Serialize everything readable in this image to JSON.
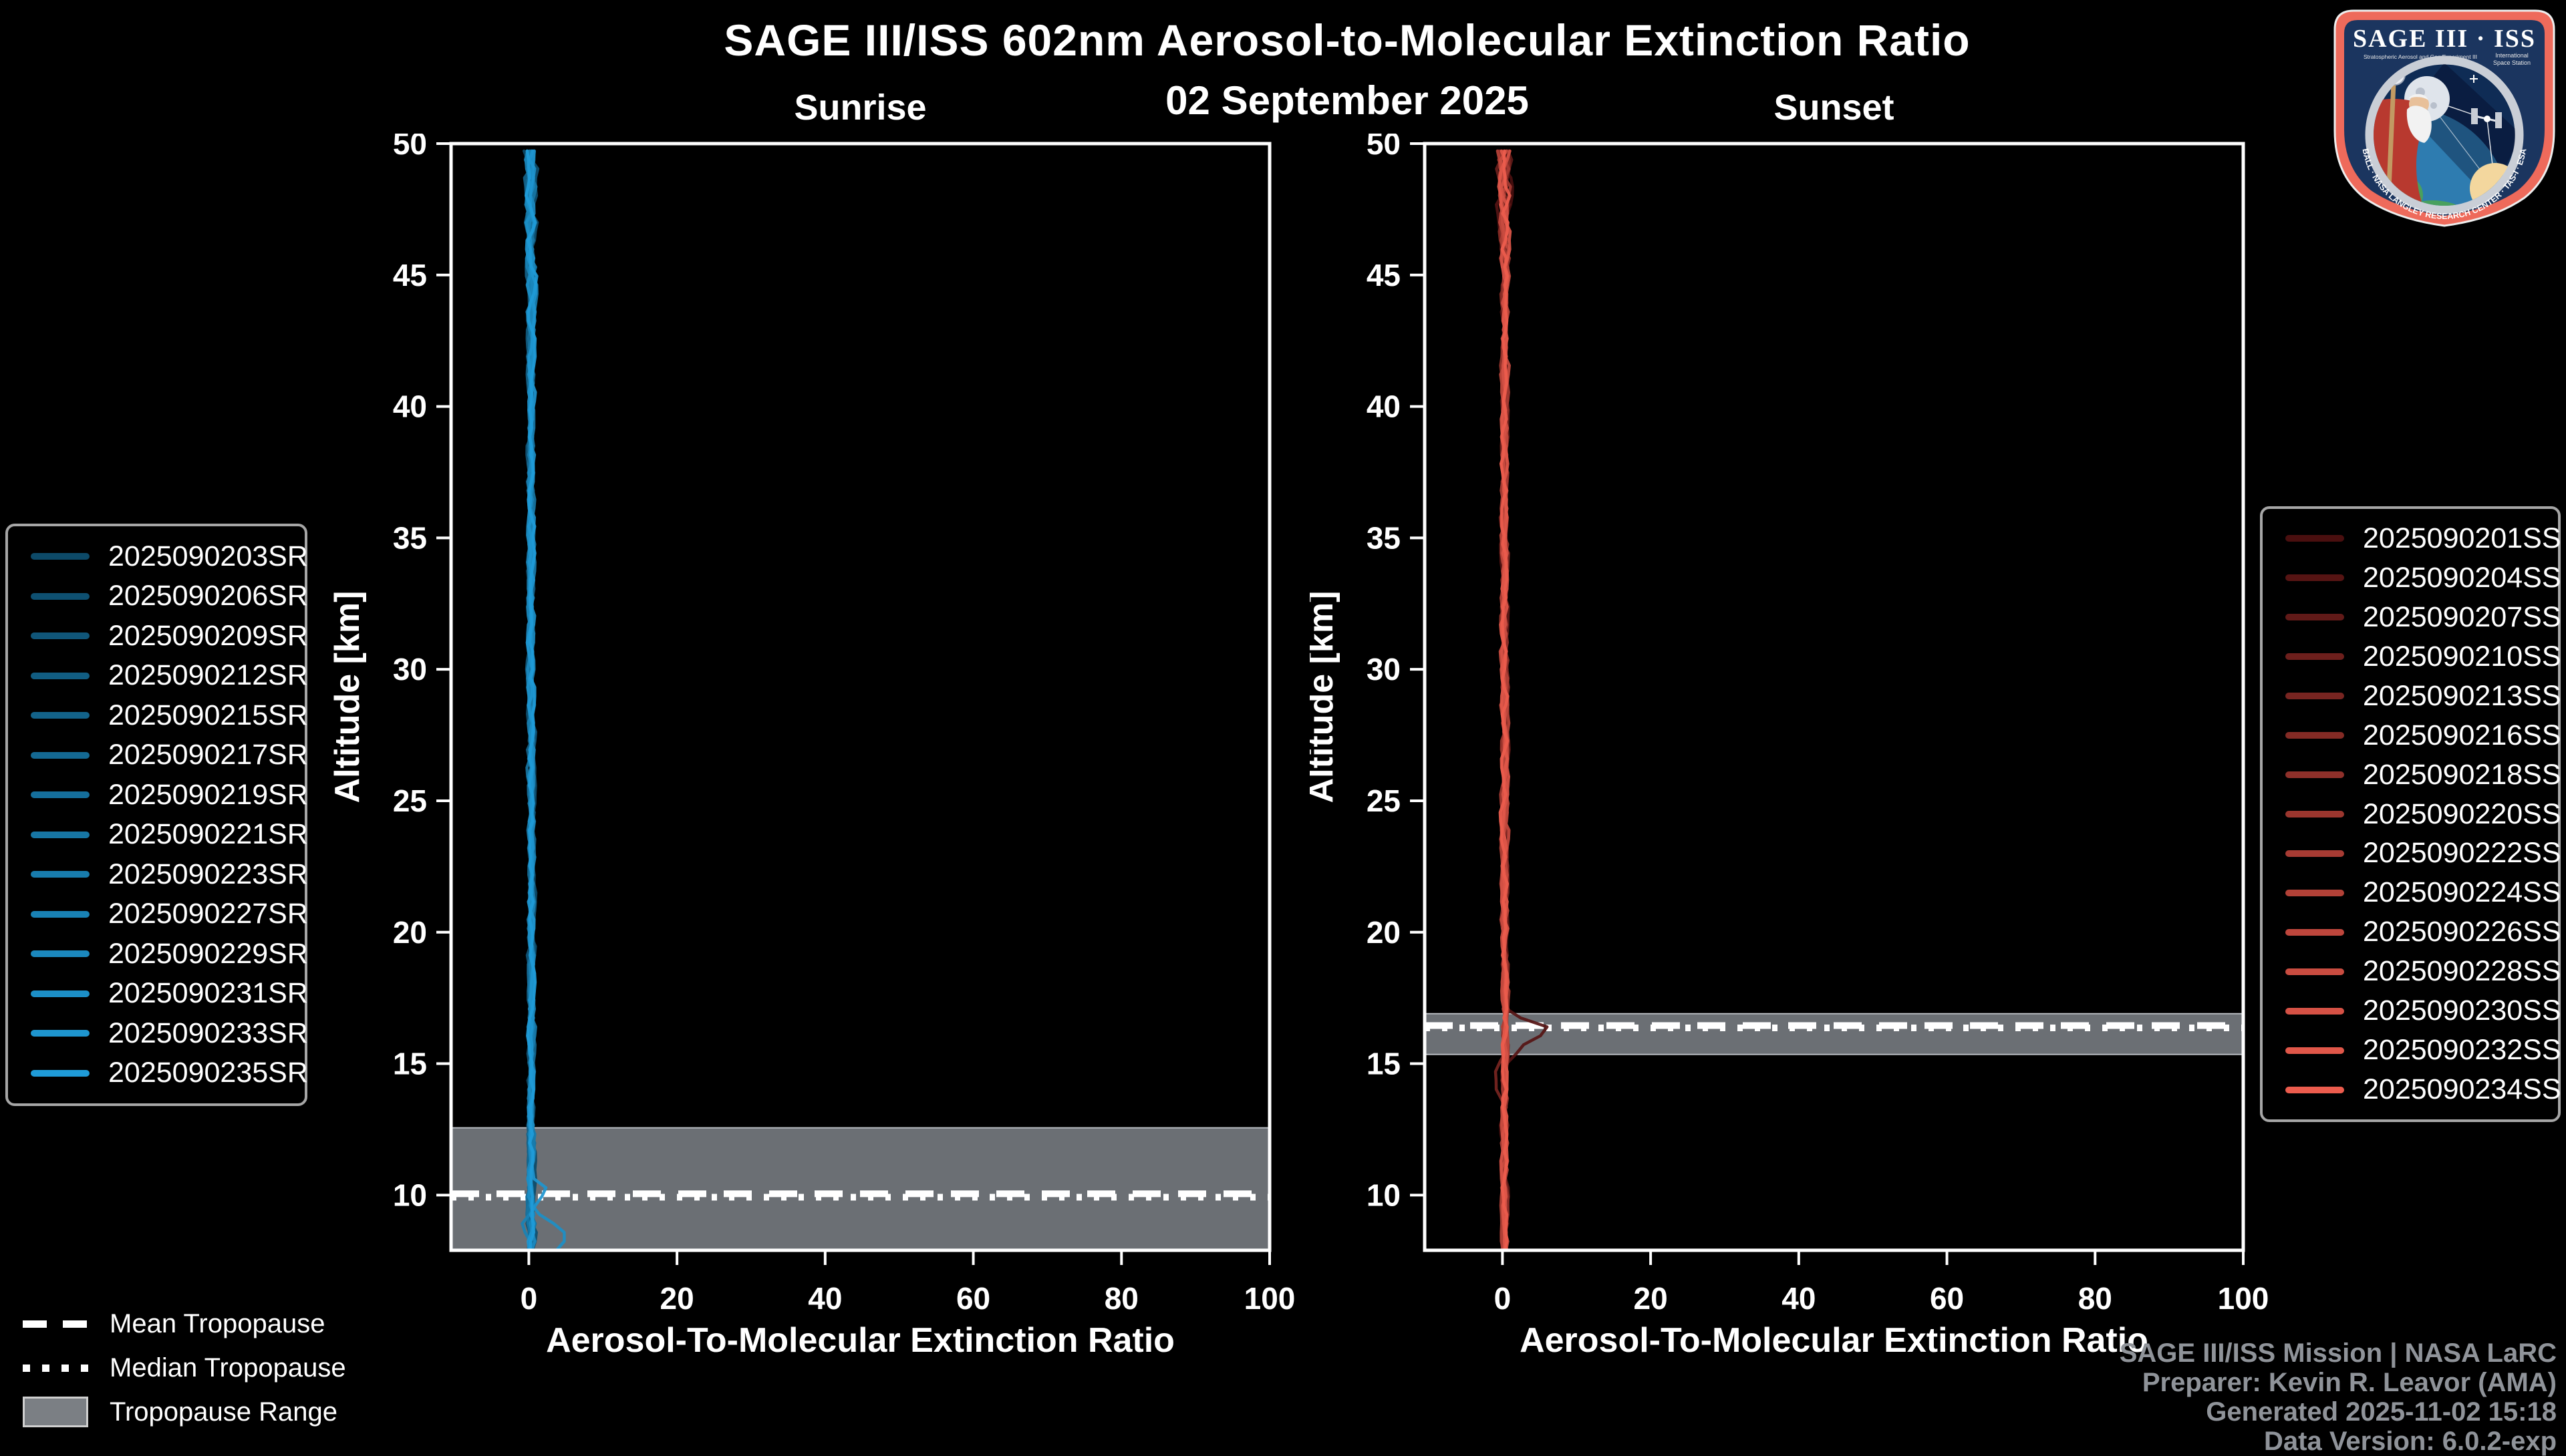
{
  "title": "SAGE III/ISS 602nm Aerosol-to-Molecular Extinction Ratio",
  "subtitle": "02 September 2025",
  "chart_data": [
    {
      "panel": "sunrise",
      "type": "line",
      "title": "Sunrise",
      "xlabel": "Aerosol-To-Molecular Extinction Ratio",
      "ylabel": "Altitude [km]",
      "xlim": [
        -10.5,
        100
      ],
      "ylim": [
        7.9,
        50
      ],
      "xticks": [
        0,
        20,
        40,
        60,
        80,
        100
      ],
      "yticks": [
        10,
        15,
        20,
        25,
        30,
        35,
        40,
        45,
        50
      ],
      "grid": false,
      "legend_position": "outside-left",
      "tropopause": {
        "mean_km": 10.05,
        "median_km": 9.92,
        "range_km": [
          7.9,
          12.56
        ]
      },
      "profile_model": {
        "alt_step_km": 0.34,
        "baseline_ratio": 0.3,
        "jitter_amp": 0.8,
        "top_boost_start_km": 42,
        "top_boost_per_km": 0.12,
        "bottom_boost_start_km": 10.5,
        "bottom_boost_per_km": 0.25
      },
      "series": [
        {
          "label": "2025090203SR",
          "color": "#0d4a68",
          "seed": 203
        },
        {
          "label": "2025090206SR",
          "color": "#0e5071",
          "seed": 206
        },
        {
          "label": "2025090209SR",
          "color": "#105679",
          "seed": 209
        },
        {
          "label": "2025090212SR",
          "color": "#115d82",
          "seed": 212
        },
        {
          "label": "2025090215SR",
          "color": "#13638a",
          "seed": 215
        },
        {
          "label": "2025090217SR",
          "color": "#146993",
          "seed": 217
        },
        {
          "label": "2025090219SR",
          "color": "#156f9c",
          "seed": 219
        },
        {
          "label": "2025090221SR",
          "color": "#1776a4",
          "seed": 221
        },
        {
          "label": "2025090223SR",
          "color": "#187cad",
          "seed": 223
        },
        {
          "label": "2025090227SR",
          "color": "#1982b5",
          "seed": 227,
          "excursions": [
            {
              "alt_km": 8.8,
              "peak_ratio": -1.8,
              "width_km": 0.5
            }
          ]
        },
        {
          "label": "2025090229SR",
          "color": "#1b88be",
          "seed": 229
        },
        {
          "label": "2025090231SR",
          "color": "#1c8fc7",
          "seed": 231,
          "excursions": [
            {
              "alt_km": 8.4,
              "peak_ratio": 4.8,
              "width_km": 0.7
            }
          ]
        },
        {
          "label": "2025090233SR",
          "color": "#1e95cf",
          "seed": 233,
          "excursions": [
            {
              "alt_km": 10.15,
              "peak_ratio": 2.1,
              "width_km": 0.45
            }
          ]
        },
        {
          "label": "2025090235SR",
          "color": "#1f9bd8",
          "seed": 235
        }
      ]
    },
    {
      "panel": "sunset",
      "type": "line",
      "title": "Sunset",
      "xlabel": "Aerosol-To-Molecular Extinction Ratio",
      "ylabel": "Altitude [km]",
      "xlim": [
        -10.5,
        100
      ],
      "ylim": [
        7.9,
        50
      ],
      "xticks": [
        0,
        20,
        40,
        60,
        80,
        100
      ],
      "yticks": [
        10,
        15,
        20,
        25,
        30,
        35,
        40,
        45,
        50
      ],
      "grid": false,
      "legend_position": "outside-right",
      "tropopause": {
        "mean_km": 16.45,
        "median_km": 16.36,
        "range_km": [
          15.35,
          16.9
        ]
      },
      "profile_model": {
        "alt_step_km": 0.34,
        "baseline_ratio": 0.3,
        "jitter_amp": 0.8,
        "top_boost_start_km": 44,
        "top_boost_per_km": 0.18,
        "bottom_boost_start_km": 0,
        "bottom_boost_per_km": 0
      },
      "series": [
        {
          "label": "2025090201SS",
          "color": "#4a0f0f",
          "seed": 301
        },
        {
          "label": "2025090204SS",
          "color": "#561413",
          "seed": 304,
          "excursions": [
            {
              "alt_km": 16.3,
              "peak_ratio": 5.6,
              "width_km": 0.4
            },
            {
              "alt_km": 15.7,
              "peak_ratio": 1.8,
              "width_km": 0.5
            }
          ]
        },
        {
          "label": "2025090207SS",
          "color": "#611a18",
          "seed": 307
        },
        {
          "label": "2025090210SS",
          "color": "#6d1f1c",
          "seed": 310
        },
        {
          "label": "2025090213SS",
          "color": "#782521",
          "seed": 313,
          "excursions": [
            {
              "alt_km": 14.4,
              "peak_ratio": -1.1,
              "width_km": 0.8
            }
          ]
        },
        {
          "label": "2025090216SS",
          "color": "#842b25",
          "seed": 316
        },
        {
          "label": "2025090218SS",
          "color": "#8f302a",
          "seed": 318
        },
        {
          "label": "2025090220SS",
          "color": "#9b362e",
          "seed": 320
        },
        {
          "label": "2025090222SS",
          "color": "#a73b33",
          "seed": 322
        },
        {
          "label": "2025090224SS",
          "color": "#b24137",
          "seed": 324
        },
        {
          "label": "2025090226SS",
          "color": "#be463c",
          "seed": 326
        },
        {
          "label": "2025090228SS",
          "color": "#c94c40",
          "seed": 328
        },
        {
          "label": "2025090230SS",
          "color": "#d55145",
          "seed": 330
        },
        {
          "label": "2025090232SS",
          "color": "#e05749",
          "seed": 332
        },
        {
          "label": "2025090234SS",
          "color": "#ec5c4d",
          "seed": 334
        }
      ]
    }
  ],
  "tropopause_legend": {
    "items": [
      {
        "style": "dashed",
        "label": "Mean Tropopause"
      },
      {
        "style": "dotted",
        "label": "Median Tropopause"
      },
      {
        "style": "patch",
        "label": "Tropopause Range"
      }
    ]
  },
  "attribution": {
    "lines": [
      "SAGE III/ISS Mission | NASA LaRC",
      "Preparer: Kevin R. Leavor (AMA)",
      "Generated 2025-11-02 15:18",
      "Data Version: 6.0.2-exp"
    ]
  },
  "logo": {
    "title": "SAGE III · ISS",
    "subtitle_left": "Stratospheric Aerosol and Gas Experiment III",
    "subtitle_right_1": "International",
    "subtitle_right_2": "Space Station",
    "ring_text": "BALL · NASA LANGLEY RESEARCH CENTER · TAS-I · ESA"
  },
  "colors": {
    "background": "#000000",
    "axis": "#ffffff",
    "tropopause_band": "#6b6f74",
    "tropopause_band_edge": "#b7bbc0",
    "tropopause_line": "#ffffff",
    "legend_border": "#a6a6a6",
    "attribution_text": "#8f9399"
  }
}
